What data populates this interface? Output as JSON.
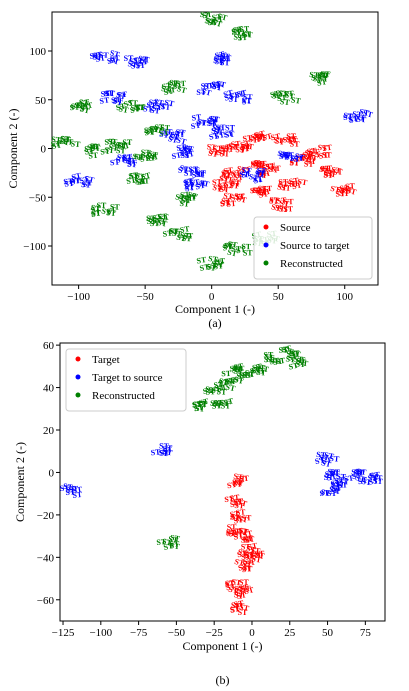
{
  "chart_data": [
    {
      "type": "scatter",
      "caption": "(a)",
      "xlabel": "Component 1 (-)",
      "ylabel": "Component 2 (-)",
      "xlim": [
        -120,
        125
      ],
      "ylim": [
        -140,
        140
      ],
      "xticks": [
        -100,
        -50,
        0,
        50,
        100
      ],
      "yticks": [
        -100,
        -50,
        0,
        50,
        100
      ],
      "point_label": "ST",
      "legend_position": "lower-right",
      "series": [
        {
          "name": "Source",
          "color": "#ff0000",
          "clusters": [
            [
              5,
              -5
            ],
            [
              20,
              0
            ],
            [
              35,
              10
            ],
            [
              55,
              5
            ],
            [
              70,
              -15
            ],
            [
              90,
              -25
            ],
            [
              15,
              -30
            ],
            [
              35,
              -45
            ],
            [
              50,
              -60
            ],
            [
              15,
              -55
            ],
            [
              60,
              -40
            ],
            [
              30,
              -20
            ],
            [
              10,
              -40
            ],
            [
              45,
              -25
            ],
            [
              80,
              -5
            ],
            [
              100,
              -45
            ]
          ]
        },
        {
          "name": "Source to target",
          "color": "#0000ff",
          "clusters": [
            [
              -80,
              90
            ],
            [
              -55,
              85
            ],
            [
              -100,
              -35
            ],
            [
              -65,
              -15
            ],
            [
              -75,
              50
            ],
            [
              -40,
              40
            ],
            [
              -30,
              10
            ],
            [
              -15,
              -25
            ],
            [
              -5,
              25
            ],
            [
              0,
              60
            ],
            [
              10,
              90
            ],
            [
              20,
              50
            ],
            [
              -20,
              -5
            ],
            [
              10,
              15
            ],
            [
              60,
              -10
            ],
            [
              110,
              30
            ],
            [
              -10,
              -40
            ],
            [
              30,
              -30
            ]
          ]
        },
        {
          "name": "Reconstructed",
          "color": "#008000",
          "clusters": [
            [
              -100,
              40
            ],
            [
              -110,
              5
            ],
            [
              -70,
              0
            ],
            [
              -50,
              -10
            ],
            [
              -60,
              40
            ],
            [
              -30,
              60
            ],
            [
              -40,
              15
            ],
            [
              -55,
              -35
            ],
            [
              -80,
              -65
            ],
            [
              -40,
              -75
            ],
            [
              -25,
              -90
            ],
            [
              0,
              -120
            ],
            [
              20,
              -105
            ],
            [
              40,
              -95
            ],
            [
              0,
              130
            ],
            [
              25,
              115
            ],
            [
              55,
              50
            ],
            [
              80,
              70
            ],
            [
              -85,
              -5
            ],
            [
              -20,
              -55
            ]
          ]
        }
      ]
    },
    {
      "type": "scatter",
      "caption": "(b)",
      "xlabel": "Component 1 (-)",
      "ylabel": "Component 2 (-)",
      "xlim": [
        -127,
        88
      ],
      "ylim": [
        -70,
        61
      ],
      "xticks": [
        -125,
        -100,
        -75,
        -50,
        -25,
        0,
        25,
        50,
        75
      ],
      "yticks": [
        -60,
        -40,
        -20,
        0,
        20,
        40,
        60
      ],
      "point_label": "ST",
      "legend_position": "top-left",
      "series": [
        {
          "name": "Target",
          "color": "#ff0000",
          "clusters": [
            [
              -8,
              -5
            ],
            [
              -10,
              -15
            ],
            [
              -8,
              -22
            ],
            [
              -10,
              -28
            ],
            [
              -5,
              -32
            ],
            [
              -3,
              -38
            ],
            [
              0,
              -40
            ],
            [
              -5,
              -45
            ],
            [
              -10,
              -55
            ],
            [
              -5,
              -57
            ],
            [
              -10,
              -65
            ]
          ]
        },
        {
          "name": "Target to source",
          "color": "#0000ff",
          "clusters": [
            [
              -120,
              -10
            ],
            [
              -60,
              10
            ],
            [
              50,
              5
            ],
            [
              55,
              -2
            ],
            [
              60,
              -6
            ],
            [
              70,
              -3
            ],
            [
              80,
              -4
            ],
            [
              52,
              -10
            ]
          ]
        },
        {
          "name": "Reconstructed",
          "color": "#008000",
          "clusters": [
            [
              -55,
              -34
            ],
            [
              -35,
              31
            ],
            [
              -25,
              38
            ],
            [
              -15,
              40
            ],
            [
              -5,
              44
            ],
            [
              -12,
              47
            ],
            [
              5,
              48
            ],
            [
              15,
              53
            ],
            [
              25,
              55
            ],
            [
              30,
              50
            ],
            [
              -20,
              32
            ]
          ]
        }
      ]
    }
  ]
}
